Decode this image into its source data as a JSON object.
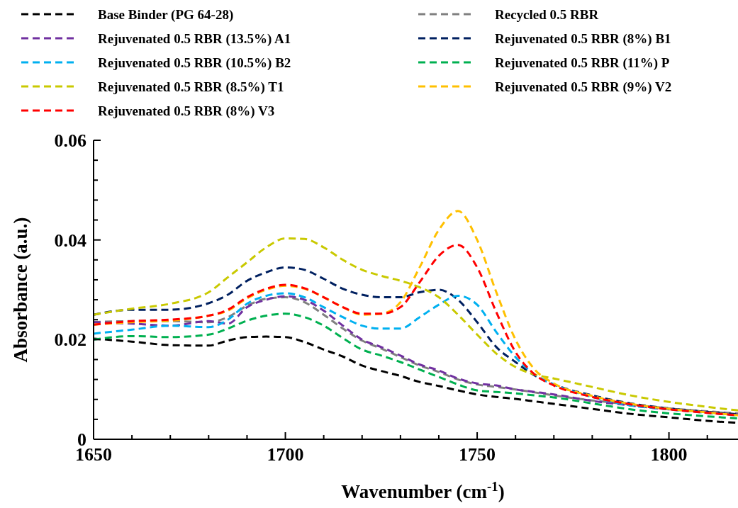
{
  "chart_data": {
    "type": "line",
    "xlabel": "Wavenumber (cm$^{-1}$)",
    "ylabel": "Absorbance (a.u.)",
    "x": [
      1650,
      1660,
      1670,
      1680,
      1685,
      1690,
      1695,
      1700,
      1705,
      1710,
      1715,
      1720,
      1725,
      1730,
      1735,
      1740,
      1745,
      1750,
      1755,
      1760,
      1765,
      1770,
      1780,
      1790,
      1800,
      1810,
      1818
    ],
    "xlim": [
      1650,
      1818
    ],
    "xticks": [
      1650,
      {
        "value": 1660,
        "label": null
      },
      {
        "value": 1670,
        "label": null
      },
      {
        "value": 1680,
        "label": null
      },
      {
        "value": 1690,
        "label": null
      },
      1700,
      {
        "value": 1710,
        "label": null
      },
      {
        "value": 1720,
        "label": null
      },
      {
        "value": 1730,
        "label": null
      },
      {
        "value": 1740,
        "label": null
      },
      1750,
      {
        "value": 1760,
        "label": null
      },
      {
        "value": 1770,
        "label": null
      },
      {
        "value": 1780,
        "label": null
      },
      {
        "value": 1790,
        "label": null
      },
      1800,
      {
        "value": 1810,
        "label": null
      }
    ],
    "ylim": [
      0,
      0.06
    ],
    "yticks": [
      0,
      {
        "value": 0.004,
        "label": null
      },
      {
        "value": 0.008,
        "label": null
      },
      {
        "value": 0.012,
        "label": null
      },
      {
        "value": 0.016,
        "label": null
      },
      0.02,
      {
        "value": 0.024,
        "label": null
      },
      {
        "value": 0.028,
        "label": null
      },
      {
        "value": 0.032,
        "label": null
      },
      {
        "value": 0.036,
        "label": null
      },
      0.04,
      {
        "value": 0.044,
        "label": null
      },
      {
        "value": 0.048,
        "label": null
      },
      {
        "value": 0.052,
        "label": null
      },
      {
        "value": 0.056,
        "label": null
      },
      0.06
    ],
    "grid": false,
    "legend": "top",
    "line_style": "dashed",
    "marker": "none",
    "series": [
      {
        "name": "Base Binder (PG 64-28)",
        "color": "#000000",
        "values": [
          0.0202,
          0.0196,
          0.0189,
          0.0188,
          0.0198,
          0.0205,
          0.0206,
          0.0205,
          0.0195,
          0.018,
          0.0166,
          0.0148,
          0.0137,
          0.0127,
          0.0115,
          0.0107,
          0.0098,
          0.009,
          0.0085,
          0.0081,
          0.0076,
          0.0071,
          0.0061,
          0.0051,
          0.0044,
          0.0037,
          0.0033
        ]
      },
      {
        "name": "Recycled 0.5 RBR",
        "color": "#808080",
        "values": [
          0.0235,
          0.0237,
          0.0237,
          0.0235,
          0.0245,
          0.0268,
          0.0282,
          0.0285,
          0.0275,
          0.025,
          0.0222,
          0.0198,
          0.0182,
          0.0165,
          0.0148,
          0.0135,
          0.012,
          0.011,
          0.0105,
          0.01,
          0.0094,
          0.0088,
          0.0078,
          0.007,
          0.0062,
          0.0056,
          0.0052
        ]
      },
      {
        "name": "Rejuvenated 0.5 RBR (13.5%) A1",
        "color": "#7030a0",
        "values": [
          0.0235,
          0.0232,
          0.0228,
          0.0237,
          0.0232,
          0.0265,
          0.028,
          0.0287,
          0.028,
          0.0258,
          0.0228,
          0.02,
          0.0185,
          0.0168,
          0.015,
          0.0138,
          0.0122,
          0.0112,
          0.0108,
          0.01,
          0.0095,
          0.009,
          0.0077,
          0.0068,
          0.006,
          0.0055,
          0.005
        ]
      },
      {
        "name": "Rejuvenated 0.5 RBR (8%) B1",
        "color": "#002060",
        "values": [
          0.025,
          0.026,
          0.026,
          0.0273,
          0.029,
          0.0318,
          0.0335,
          0.0345,
          0.034,
          0.0322,
          0.0302,
          0.029,
          0.0285,
          0.0285,
          0.0295,
          0.03,
          0.028,
          0.0235,
          0.0185,
          0.0155,
          0.0128,
          0.011,
          0.0088,
          0.0072,
          0.0062,
          0.0055,
          0.005
        ]
      },
      {
        "name": "Rejuvenated 0.5 RBR (10.5%) B2",
        "color": "#00b0f0",
        "values": [
          0.0212,
          0.022,
          0.0228,
          0.0225,
          0.024,
          0.0272,
          0.0288,
          0.0293,
          0.0285,
          0.0265,
          0.0245,
          0.0228,
          0.0222,
          0.0222,
          0.0245,
          0.027,
          0.0288,
          0.027,
          0.0215,
          0.0165,
          0.013,
          0.011,
          0.0085,
          0.0068,
          0.006,
          0.0053,
          0.0048
        ]
      },
      {
        "name": "Rejuvenated 0.5 RBR (11%) P",
        "color": "#00b050",
        "values": [
          0.02,
          0.0207,
          0.0205,
          0.021,
          0.0222,
          0.0238,
          0.0248,
          0.0252,
          0.0245,
          0.0228,
          0.0203,
          0.018,
          0.0168,
          0.0155,
          0.014,
          0.0125,
          0.011,
          0.0098,
          0.0095,
          0.0092,
          0.0088,
          0.0084,
          0.0072,
          0.006,
          0.0052,
          0.0046,
          0.0042
        ]
      },
      {
        "name": "Rejuvenated 0.5 RBR (8.5%) T1",
        "color": "#c9c900",
        "values": [
          0.025,
          0.0262,
          0.0272,
          0.0295,
          0.0325,
          0.0355,
          0.0385,
          0.0403,
          0.0402,
          0.0385,
          0.036,
          0.034,
          0.0328,
          0.0318,
          0.0305,
          0.0285,
          0.025,
          0.021,
          0.0172,
          0.0145,
          0.013,
          0.0122,
          0.0105,
          0.0088,
          0.0075,
          0.0065,
          0.0058
        ]
      },
      {
        "name": "Rejuvenated 0.5 RBR (9%) V2",
        "color": "#ffc000",
        "values": [
          0.023,
          0.0235,
          0.0238,
          0.0248,
          0.0258,
          0.0283,
          0.03,
          0.0308,
          0.0302,
          0.0285,
          0.0265,
          0.025,
          0.0252,
          0.0275,
          0.0345,
          0.042,
          0.0458,
          0.04,
          0.0295,
          0.02,
          0.014,
          0.0112,
          0.0087,
          0.0071,
          0.0061,
          0.0054,
          0.0048
        ]
      },
      {
        "name": "Rejuvenated 0.5 RBR (8%) V3",
        "color": "#ff0000",
        "values": [
          0.023,
          0.0237,
          0.024,
          0.0248,
          0.026,
          0.0285,
          0.0302,
          0.031,
          0.0303,
          0.0285,
          0.0265,
          0.0252,
          0.0252,
          0.0265,
          0.0315,
          0.0368,
          0.039,
          0.0345,
          0.0255,
          0.0175,
          0.013,
          0.0108,
          0.0085,
          0.007,
          0.006,
          0.0053,
          0.0048
        ]
      }
    ]
  }
}
